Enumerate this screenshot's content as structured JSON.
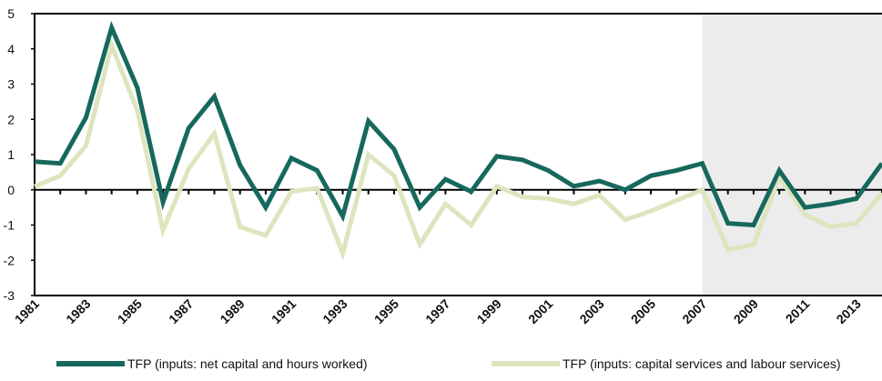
{
  "chart_data": {
    "type": "line",
    "categories": [
      "1981",
      null,
      "1983",
      null,
      "1985",
      null,
      "1987",
      null,
      "1989",
      null,
      "1991",
      null,
      "1993",
      null,
      "1995",
      null,
      "1997",
      null,
      "1999",
      null,
      "2001",
      null,
      "2003",
      null,
      "2005",
      null,
      "2007",
      null,
      "2009",
      null,
      "2011",
      null,
      "2013",
      null
    ],
    "series": [
      {
        "name": "TFP (inputs: net capital and hours worked)",
        "color": "#17685c",
        "values": [
          0.8,
          0.75,
          2.05,
          4.6,
          2.9,
          -0.35,
          1.75,
          2.65,
          0.7,
          -0.5,
          0.9,
          0.55,
          -0.75,
          1.95,
          1.15,
          -0.5,
          0.3,
          -0.05,
          0.95,
          0.85,
          0.55,
          0.1,
          0.25,
          0.0,
          0.4,
          0.55,
          0.75,
          -0.95,
          -1.0,
          0.55,
          -0.5,
          -0.4,
          -0.25,
          0.75
        ]
      },
      {
        "name": "TFP (inputs: capital services and labour services)",
        "color": "#dde5bf",
        "values": [
          0.1,
          0.4,
          1.25,
          4.1,
          2.25,
          -1.15,
          0.6,
          1.6,
          -1.05,
          -1.3,
          -0.05,
          0.05,
          -1.8,
          1.0,
          0.4,
          -1.55,
          -0.4,
          -1.0,
          0.1,
          -0.2,
          -0.25,
          -0.4,
          -0.15,
          -0.85,
          -0.6,
          -0.3,
          0.0,
          -1.7,
          -1.55,
          0.35,
          -0.7,
          -1.05,
          -0.95,
          -0.1
        ]
      }
    ],
    "ylim": [
      -3,
      5
    ],
    "yticks": [
      -3,
      -2,
      -1,
      0,
      1,
      2,
      3,
      4,
      5
    ],
    "shaded_from": "2007",
    "shade_color": "#ececec"
  }
}
